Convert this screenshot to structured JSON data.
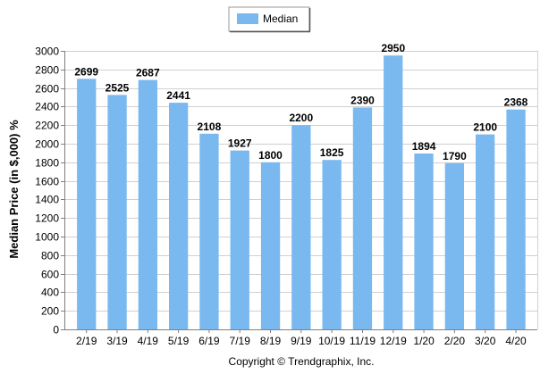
{
  "chart_data": {
    "type": "bar",
    "categories": [
      "2/19",
      "3/19",
      "4/19",
      "5/19",
      "6/19",
      "7/19",
      "8/19",
      "9/19",
      "10/19",
      "11/19",
      "12/19",
      "1/20",
      "2/20",
      "3/20",
      "4/20"
    ],
    "series": [
      {
        "name": "Median",
        "values": [
          2699,
          2525,
          2687,
          2441,
          2108,
          1927,
          1800,
          2200,
          1825,
          2390,
          2950,
          1894,
          1790,
          2100,
          2368
        ]
      }
    ],
    "ylabel": "Median Price (in $,000) %",
    "xlabel": "",
    "ylim": [
      0,
      3000
    ],
    "yticks": [
      0,
      200,
      400,
      600,
      800,
      1000,
      1200,
      1400,
      1600,
      1800,
      2000,
      2200,
      2400,
      2600,
      2800,
      3000
    ],
    "grid": true,
    "legend": "top-center",
    "bar_color": "#7ab8f0",
    "data_labels": true
  },
  "footer": {
    "copyright": "Copyright © Trendgraphix, Inc."
  }
}
